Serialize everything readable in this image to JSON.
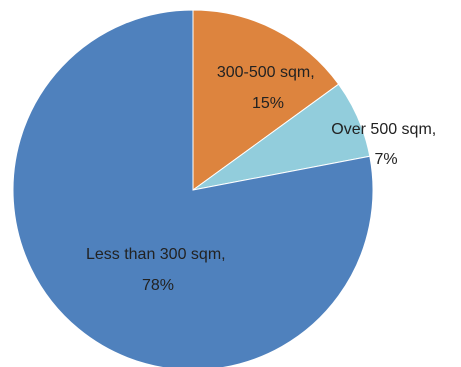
{
  "chart_data": {
    "type": "pie",
    "title": "",
    "legend": "none",
    "slices": [
      {
        "name": "300-500 sqm",
        "value": 15,
        "label_line1": "300-500 sqm,",
        "label_line2": "15%",
        "color": "#DD843E"
      },
      {
        "name": "Over 500 sqm",
        "value": 7,
        "label_line1": "Over 500 sqm,",
        "label_line2": "7%",
        "color": "#92CDDC"
      },
      {
        "name": "Less than 300 sqm",
        "value": 78,
        "label_line1": "Less than 300 sqm,",
        "label_line2": "78%",
        "color": "#4F81BD"
      }
    ]
  }
}
